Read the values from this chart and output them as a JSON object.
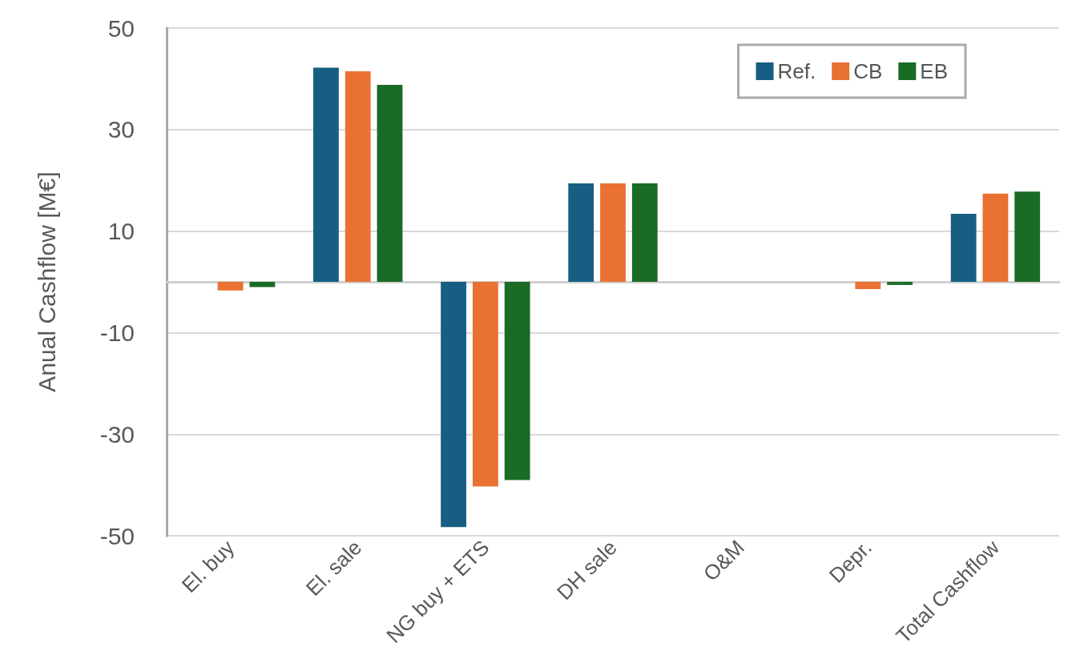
{
  "chart_data": {
    "type": "bar",
    "ylabel": "Anual Cashflow [M€]",
    "categories": [
      "El. buy",
      "El. sale",
      "NG buy + ETS",
      "DH sale",
      "O&M",
      "Depr.",
      "Total Cashflow"
    ],
    "series": [
      {
        "name": "Ref.",
        "color": "#175e82",
        "values": [
          0,
          42.2,
          -48.3,
          19.4,
          0,
          0,
          13.4
        ]
      },
      {
        "name": "CB",
        "color": "#e97132",
        "values": [
          -1.7,
          41.5,
          -40.3,
          19.4,
          0,
          -1.4,
          17.4
        ]
      },
      {
        "name": "EB",
        "color": "#1a6b26",
        "values": [
          -1.0,
          38.8,
          -39.0,
          19.4,
          0,
          -0.6,
          17.8
        ]
      }
    ],
    "ylim": [
      -50,
      50
    ],
    "yticks": [
      -50,
      -30,
      -10,
      10,
      30,
      50
    ],
    "grid": "y",
    "legend": "top right"
  }
}
